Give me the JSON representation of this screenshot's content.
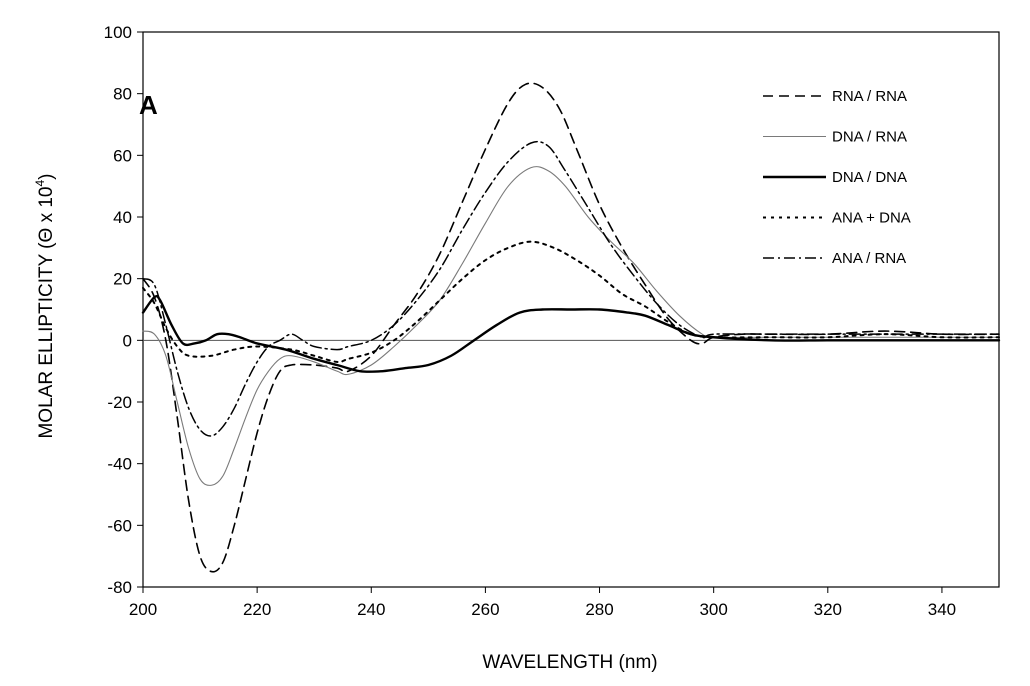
{
  "chart_data": {
    "type": "line",
    "panel_label": "A",
    "xlabel": "WAVELENGTH (nm)",
    "ylabel": "MOLAR ELLIPTICITY (Θ x 10⁴)",
    "ylabel_parts": {
      "main": "MOLAR ELLIPTICITY  (Θ x 10",
      "exp": "4",
      "close": ")"
    },
    "xlim": [
      200,
      350
    ],
    "ylim": [
      -80,
      100
    ],
    "x_ticks": [
      200,
      220,
      240,
      260,
      280,
      300,
      320,
      340
    ],
    "y_ticks": [
      -80,
      -60,
      -40,
      -20,
      0,
      20,
      40,
      60,
      80,
      100
    ],
    "grid": false,
    "zero_line": true,
    "legend_position": "top-right",
    "series": [
      {
        "name": "RNA / RNA",
        "style": "dashed",
        "color": "#000000",
        "points": [
          [
            200,
            20
          ],
          [
            202,
            14
          ],
          [
            204,
            0
          ],
          [
            206,
            -25
          ],
          [
            208,
            -52
          ],
          [
            210,
            -70
          ],
          [
            212,
            -75
          ],
          [
            214,
            -72
          ],
          [
            216,
            -60
          ],
          [
            218,
            -45
          ],
          [
            220,
            -30
          ],
          [
            222,
            -18
          ],
          [
            224,
            -10
          ],
          [
            226,
            -8
          ],
          [
            230,
            -8
          ],
          [
            234,
            -9
          ],
          [
            236,
            -10
          ],
          [
            240,
            -5
          ],
          [
            244,
            5
          ],
          [
            248,
            15
          ],
          [
            252,
            28
          ],
          [
            256,
            45
          ],
          [
            260,
            62
          ],
          [
            264,
            77
          ],
          [
            267,
            83
          ],
          [
            270,
            82
          ],
          [
            273,
            75
          ],
          [
            276,
            62
          ],
          [
            280,
            44
          ],
          [
            284,
            30
          ],
          [
            288,
            18
          ],
          [
            292,
            7
          ],
          [
            296,
            0
          ],
          [
            298,
            -1
          ],
          [
            300,
            1
          ],
          [
            305,
            2
          ],
          [
            310,
            2
          ],
          [
            320,
            2
          ],
          [
            330,
            3
          ],
          [
            340,
            2
          ],
          [
            350,
            2
          ]
        ]
      },
      {
        "name": "DNA / RNA",
        "style": "solid-thin",
        "color": "#7a7a7a",
        "points": [
          [
            200,
            3
          ],
          [
            202,
            2
          ],
          [
            204,
            -5
          ],
          [
            206,
            -20
          ],
          [
            208,
            -35
          ],
          [
            210,
            -45
          ],
          [
            212,
            -47
          ],
          [
            214,
            -44
          ],
          [
            216,
            -35
          ],
          [
            218,
            -25
          ],
          [
            220,
            -16
          ],
          [
            222,
            -10
          ],
          [
            224,
            -6
          ],
          [
            226,
            -5
          ],
          [
            230,
            -7
          ],
          [
            234,
            -10
          ],
          [
            236,
            -11
          ],
          [
            240,
            -8
          ],
          [
            244,
            -2
          ],
          [
            248,
            5
          ],
          [
            252,
            13
          ],
          [
            256,
            25
          ],
          [
            260,
            38
          ],
          [
            264,
            50
          ],
          [
            268,
            56
          ],
          [
            271,
            55
          ],
          [
            274,
            50
          ],
          [
            278,
            40
          ],
          [
            282,
            32
          ],
          [
            286,
            25
          ],
          [
            290,
            16
          ],
          [
            294,
            8
          ],
          [
            298,
            2
          ],
          [
            300,
            1
          ],
          [
            310,
            1
          ],
          [
            320,
            1
          ],
          [
            330,
            1
          ],
          [
            340,
            1
          ],
          [
            350,
            1
          ]
        ]
      },
      {
        "name": "DNA / DNA",
        "style": "solid-thick",
        "color": "#000000",
        "points": [
          [
            200,
            9
          ],
          [
            202,
            14
          ],
          [
            203,
            13
          ],
          [
            205,
            5
          ],
          [
            207,
            -1
          ],
          [
            209,
            -1
          ],
          [
            211,
            0
          ],
          [
            213,
            2
          ],
          [
            215,
            2
          ],
          [
            217,
            1
          ],
          [
            220,
            -1
          ],
          [
            225,
            -3
          ],
          [
            230,
            -6
          ],
          [
            234,
            -8
          ],
          [
            238,
            -10
          ],
          [
            242,
            -10
          ],
          [
            246,
            -9
          ],
          [
            250,
            -8
          ],
          [
            254,
            -5
          ],
          [
            258,
            0
          ],
          [
            262,
            5
          ],
          [
            266,
            9
          ],
          [
            270,
            10
          ],
          [
            275,
            10
          ],
          [
            280,
            10
          ],
          [
            285,
            9
          ],
          [
            288,
            8
          ],
          [
            292,
            5
          ],
          [
            296,
            2
          ],
          [
            300,
            1
          ],
          [
            310,
            0
          ],
          [
            320,
            0
          ],
          [
            330,
            0
          ],
          [
            340,
            0
          ],
          [
            350,
            0
          ]
        ]
      },
      {
        "name": "ANA + DNA",
        "style": "dotted",
        "color": "#000000",
        "points": [
          [
            200,
            17
          ],
          [
            202,
            12
          ],
          [
            204,
            4
          ],
          [
            206,
            -2
          ],
          [
            208,
            -5
          ],
          [
            212,
            -5
          ],
          [
            216,
            -3
          ],
          [
            220,
            -2
          ],
          [
            226,
            -3
          ],
          [
            230,
            -5
          ],
          [
            234,
            -7
          ],
          [
            236,
            -6
          ],
          [
            240,
            -4
          ],
          [
            244,
            0
          ],
          [
            248,
            6
          ],
          [
            252,
            13
          ],
          [
            256,
            20
          ],
          [
            260,
            26
          ],
          [
            264,
            30
          ],
          [
            268,
            32
          ],
          [
            272,
            30
          ],
          [
            276,
            26
          ],
          [
            280,
            21
          ],
          [
            284,
            15
          ],
          [
            288,
            11
          ],
          [
            292,
            6
          ],
          [
            296,
            2
          ],
          [
            300,
            1
          ],
          [
            310,
            1
          ],
          [
            320,
            1
          ],
          [
            330,
            2
          ],
          [
            340,
            1
          ],
          [
            350,
            1
          ]
        ]
      },
      {
        "name": "ANA / RNA",
        "style": "dash-dot",
        "color": "#000000",
        "points": [
          [
            200,
            20
          ],
          [
            202,
            18
          ],
          [
            204,
            5
          ],
          [
            206,
            -10
          ],
          [
            208,
            -22
          ],
          [
            210,
            -29
          ],
          [
            212,
            -31
          ],
          [
            214,
            -28
          ],
          [
            216,
            -22
          ],
          [
            218,
            -14
          ],
          [
            220,
            -7
          ],
          [
            222,
            -2
          ],
          [
            224,
            0
          ],
          [
            226,
            2
          ],
          [
            228,
            0
          ],
          [
            230,
            -2
          ],
          [
            234,
            -3
          ],
          [
            236,
            -2
          ],
          [
            240,
            0
          ],
          [
            244,
            5
          ],
          [
            248,
            13
          ],
          [
            252,
            23
          ],
          [
            256,
            36
          ],
          [
            260,
            48
          ],
          [
            264,
            58
          ],
          [
            268,
            64
          ],
          [
            271,
            63
          ],
          [
            274,
            55
          ],
          [
            278,
            43
          ],
          [
            282,
            31
          ],
          [
            286,
            21
          ],
          [
            290,
            12
          ],
          [
            294,
            5
          ],
          [
            298,
            1
          ],
          [
            300,
            2
          ],
          [
            310,
            2
          ],
          [
            320,
            2
          ],
          [
            330,
            2
          ],
          [
            340,
            2
          ],
          [
            350,
            2
          ]
        ]
      }
    ]
  }
}
